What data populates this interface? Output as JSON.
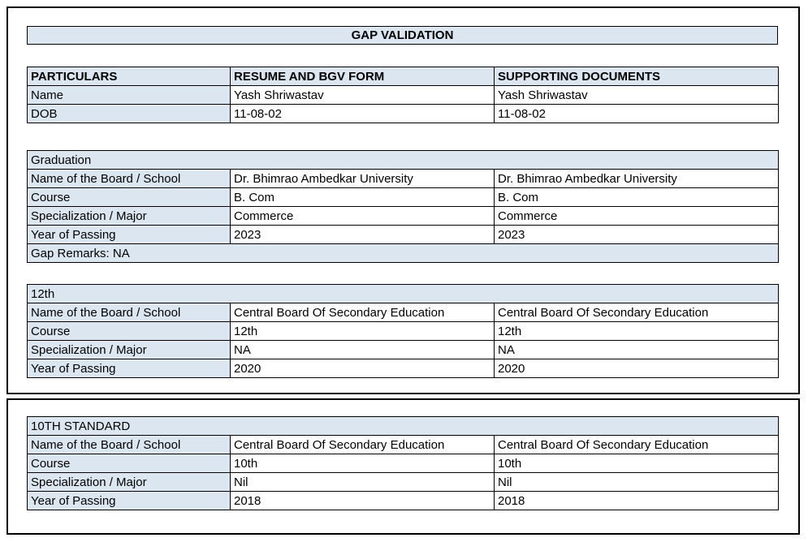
{
  "colors": {
    "section_bg": "#dce6f1",
    "table_border": "#000000",
    "text": "#000000",
    "page_bg": "#ffffff"
  },
  "title": "GAP VALIDATION",
  "particulars": {
    "headers": [
      "PARTICULARS",
      "RESUME AND BGV FORM",
      "SUPPORTING DOCUMENTS"
    ],
    "rows": [
      {
        "label": "Name",
        "resume": "Yash Shriwastav",
        "supporting": "Yash Shriwastav"
      },
      {
        "label": "DOB",
        "resume": "11-08-02",
        "supporting": "11-08-02"
      }
    ]
  },
  "sections": [
    {
      "heading": "Graduation",
      "rows": [
        {
          "label": "Name of the Board / School",
          "resume": "Dr. Bhimrao Ambedkar University",
          "supporting": "Dr. Bhimrao Ambedkar University"
        },
        {
          "label": "Course",
          "resume": "B. Com",
          "supporting": "B. Com"
        },
        {
          "label": "Specialization / Major",
          "resume": "Commerce",
          "supporting": "Commerce"
        },
        {
          "label": "Year of Passing",
          "resume": "2023",
          "supporting": "2023"
        }
      ],
      "gap_remarks": "Gap Remarks: NA"
    },
    {
      "heading": "12th",
      "rows": [
        {
          "label": "Name of the Board / School",
          "resume": "Central Board Of Secondary Education",
          "supporting": "Central Board Of Secondary Education"
        },
        {
          "label": "Course",
          "resume": "12th",
          "supporting": "12th"
        },
        {
          "label": "Specialization / Major",
          "resume": "NA",
          "supporting": "NA"
        },
        {
          "label": "Year of Passing",
          "resume": "2020",
          "supporting": "2020"
        }
      ]
    },
    {
      "heading": "10TH STANDARD",
      "rows": [
        {
          "label": "Name of the Board / School",
          "resume": "Central Board Of Secondary Education",
          "supporting": "Central Board Of Secondary Education"
        },
        {
          "label": "Course",
          "resume": "10th",
          "supporting": "10th"
        },
        {
          "label": "Specialization / Major",
          "resume": "Nil",
          "supporting": "Nil"
        },
        {
          "label": "Year of Passing",
          "resume": "2018",
          "supporting": "2018"
        }
      ]
    }
  ]
}
